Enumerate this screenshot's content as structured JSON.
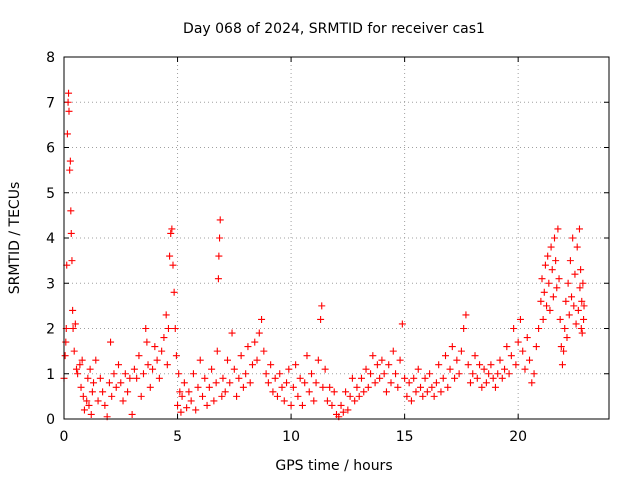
{
  "chart_data": {
    "type": "scatter",
    "title": "Day 068 of 2024, SRMTID for receiver cas1",
    "xlabel": "GPS time / hours",
    "ylabel": "SRMTID / TECUs",
    "xlim": [
      0,
      24
    ],
    "ylim": [
      0,
      8
    ],
    "x_ticks": [
      "0",
      "5",
      "10",
      "15",
      "20"
    ],
    "x_tick_values": [
      0,
      5,
      10,
      15,
      20
    ],
    "y_ticks": [
      "0",
      "1",
      "2",
      "3",
      "4",
      "5",
      "6",
      "7",
      "8"
    ],
    "y_tick_values": [
      0,
      1,
      2,
      3,
      4,
      5,
      6,
      7,
      8
    ],
    "grid": true,
    "marker": "+",
    "color": "#ff0000",
    "series": [
      {
        "name": "SRMTID",
        "points": [
          [
            0.0,
            0.9
          ],
          [
            0.05,
            1.4
          ],
          [
            0.08,
            1.7
          ],
          [
            0.1,
            2.0
          ],
          [
            0.12,
            3.4
          ],
          [
            0.15,
            6.3
          ],
          [
            0.18,
            7.0
          ],
          [
            0.2,
            7.2
          ],
          [
            0.22,
            6.8
          ],
          [
            0.25,
            5.5
          ],
          [
            0.28,
            5.7
          ],
          [
            0.3,
            4.6
          ],
          [
            0.32,
            4.1
          ],
          [
            0.35,
            3.5
          ],
          [
            0.38,
            2.4
          ],
          [
            0.4,
            2.0
          ],
          [
            0.45,
            1.5
          ],
          [
            0.5,
            2.1
          ],
          [
            0.55,
            1.1
          ],
          [
            0.6,
            1.0
          ],
          [
            0.7,
            1.2
          ],
          [
            0.75,
            0.7
          ],
          [
            0.8,
            1.3
          ],
          [
            0.85,
            0.5
          ],
          [
            0.9,
            0.2
          ],
          [
            1.0,
            0.4
          ],
          [
            1.05,
            0.9
          ],
          [
            1.1,
            0.3
          ],
          [
            1.15,
            1.1
          ],
          [
            1.2,
            0.1
          ],
          [
            1.25,
            0.6
          ],
          [
            1.3,
            0.8
          ],
          [
            1.4,
            1.3
          ],
          [
            1.5,
            0.4
          ],
          [
            1.6,
            0.9
          ],
          [
            1.7,
            0.6
          ],
          [
            1.8,
            0.3
          ],
          [
            1.9,
            0.05
          ],
          [
            2.0,
            0.8
          ],
          [
            2.05,
            1.7
          ],
          [
            2.1,
            0.5
          ],
          [
            2.2,
            1.0
          ],
          [
            2.3,
            0.7
          ],
          [
            2.4,
            1.2
          ],
          [
            2.5,
            0.8
          ],
          [
            2.6,
            0.4
          ],
          [
            2.7,
            1.0
          ],
          [
            2.8,
            0.6
          ],
          [
            2.9,
            0.9
          ],
          [
            3.0,
            0.1
          ],
          [
            3.1,
            1.1
          ],
          [
            3.2,
            0.9
          ],
          [
            3.3,
            1.4
          ],
          [
            3.4,
            0.5
          ],
          [
            3.5,
            1.0
          ],
          [
            3.6,
            2.0
          ],
          [
            3.65,
            1.7
          ],
          [
            3.7,
            1.2
          ],
          [
            3.8,
            0.7
          ],
          [
            3.9,
            1.1
          ],
          [
            4.0,
            1.6
          ],
          [
            4.1,
            1.3
          ],
          [
            4.2,
            0.9
          ],
          [
            4.3,
            1.5
          ],
          [
            4.4,
            1.8
          ],
          [
            4.5,
            2.3
          ],
          [
            4.55,
            1.2
          ],
          [
            4.6,
            2.0
          ],
          [
            4.65,
            3.6
          ],
          [
            4.7,
            4.1
          ],
          [
            4.75,
            4.2
          ],
          [
            4.8,
            3.4
          ],
          [
            4.85,
            2.8
          ],
          [
            4.9,
            2.0
          ],
          [
            4.95,
            1.4
          ],
          [
            5.0,
            0.3
          ],
          [
            5.05,
            1.0
          ],
          [
            5.1,
            0.6
          ],
          [
            5.15,
            0.15
          ],
          [
            5.2,
            0.5
          ],
          [
            5.3,
            0.8
          ],
          [
            5.4,
            0.25
          ],
          [
            5.5,
            0.6
          ],
          [
            5.6,
            0.4
          ],
          [
            5.7,
            1.0
          ],
          [
            5.8,
            0.2
          ],
          [
            5.9,
            0.7
          ],
          [
            6.0,
            1.3
          ],
          [
            6.1,
            0.5
          ],
          [
            6.2,
            0.9
          ],
          [
            6.3,
            0.3
          ],
          [
            6.4,
            0.7
          ],
          [
            6.5,
            1.1
          ],
          [
            6.6,
            0.4
          ],
          [
            6.7,
            0.8
          ],
          [
            6.75,
            1.5
          ],
          [
            6.8,
            3.1
          ],
          [
            6.82,
            3.6
          ],
          [
            6.85,
            4.0
          ],
          [
            6.88,
            4.4
          ],
          [
            6.95,
            0.5
          ],
          [
            7.0,
            0.9
          ],
          [
            7.1,
            0.6
          ],
          [
            7.2,
            1.3
          ],
          [
            7.3,
            0.8
          ],
          [
            7.4,
            1.9
          ],
          [
            7.5,
            1.1
          ],
          [
            7.6,
            0.5
          ],
          [
            7.7,
            0.9
          ],
          [
            7.8,
            1.4
          ],
          [
            7.9,
            0.7
          ],
          [
            8.0,
            1.0
          ],
          [
            8.1,
            1.6
          ],
          [
            8.2,
            0.8
          ],
          [
            8.3,
            1.2
          ],
          [
            8.4,
            1.7
          ],
          [
            8.5,
            1.3
          ],
          [
            8.6,
            1.9
          ],
          [
            8.7,
            2.2
          ],
          [
            8.8,
            1.5
          ],
          [
            8.9,
            1.0
          ],
          [
            9.0,
            0.8
          ],
          [
            9.1,
            1.2
          ],
          [
            9.2,
            0.6
          ],
          [
            9.3,
            0.9
          ],
          [
            9.4,
            0.5
          ],
          [
            9.5,
            1.0
          ],
          [
            9.6,
            0.7
          ],
          [
            9.7,
            0.4
          ],
          [
            9.8,
            0.8
          ],
          [
            9.9,
            1.1
          ],
          [
            10.0,
            0.3
          ],
          [
            10.1,
            0.7
          ],
          [
            10.2,
            1.2
          ],
          [
            10.3,
            0.5
          ],
          [
            10.4,
            0.9
          ],
          [
            10.5,
            0.3
          ],
          [
            10.6,
            0.8
          ],
          [
            10.7,
            1.4
          ],
          [
            10.8,
            0.6
          ],
          [
            10.9,
            1.0
          ],
          [
            11.0,
            0.4
          ],
          [
            11.1,
            0.8
          ],
          [
            11.2,
            1.3
          ],
          [
            11.3,
            2.2
          ],
          [
            11.35,
            2.5
          ],
          [
            11.4,
            0.7
          ],
          [
            11.5,
            1.1
          ],
          [
            11.6,
            0.4
          ],
          [
            11.7,
            0.7
          ],
          [
            11.8,
            0.3
          ],
          [
            11.9,
            0.6
          ],
          [
            12.0,
            0.1
          ],
          [
            12.1,
            0.05
          ],
          [
            12.2,
            0.3
          ],
          [
            12.3,
            0.15
          ],
          [
            12.4,
            0.6
          ],
          [
            12.5,
            0.2
          ],
          [
            12.6,
            0.5
          ],
          [
            12.7,
            0.9
          ],
          [
            12.8,
            0.4
          ],
          [
            12.9,
            0.7
          ],
          [
            13.0,
            0.5
          ],
          [
            13.1,
            0.9
          ],
          [
            13.2,
            0.6
          ],
          [
            13.3,
            1.1
          ],
          [
            13.4,
            0.7
          ],
          [
            13.5,
            1.0
          ],
          [
            13.6,
            1.4
          ],
          [
            13.7,
            0.8
          ],
          [
            13.8,
            1.2
          ],
          [
            13.9,
            0.9
          ],
          [
            14.0,
            1.3
          ],
          [
            14.1,
            1.0
          ],
          [
            14.2,
            0.6
          ],
          [
            14.3,
            1.2
          ],
          [
            14.4,
            0.8
          ],
          [
            14.5,
            1.5
          ],
          [
            14.6,
            1.0
          ],
          [
            14.7,
            0.7
          ],
          [
            14.8,
            1.3
          ],
          [
            14.9,
            2.1
          ],
          [
            15.0,
            0.9
          ],
          [
            15.1,
            0.5
          ],
          [
            15.2,
            0.8
          ],
          [
            15.3,
            0.4
          ],
          [
            15.4,
            0.9
          ],
          [
            15.5,
            0.6
          ],
          [
            15.6,
            1.1
          ],
          [
            15.7,
            0.7
          ],
          [
            15.8,
            0.5
          ],
          [
            15.9,
            0.9
          ],
          [
            16.0,
            0.6
          ],
          [
            16.1,
            1.0
          ],
          [
            16.2,
            0.7
          ],
          [
            16.3,
            0.5
          ],
          [
            16.4,
            0.8
          ],
          [
            16.5,
            1.2
          ],
          [
            16.6,
            0.6
          ],
          [
            16.7,
            0.9
          ],
          [
            16.8,
            1.4
          ],
          [
            16.9,
            0.7
          ],
          [
            17.0,
            1.1
          ],
          [
            17.1,
            1.6
          ],
          [
            17.2,
            0.9
          ],
          [
            17.3,
            1.3
          ],
          [
            17.4,
            1.0
          ],
          [
            17.5,
            1.5
          ],
          [
            17.6,
            2.0
          ],
          [
            17.7,
            2.3
          ],
          [
            17.8,
            1.2
          ],
          [
            17.9,
            0.8
          ],
          [
            18.0,
            1.0
          ],
          [
            18.1,
            1.4
          ],
          [
            18.2,
            0.9
          ],
          [
            18.3,
            1.2
          ],
          [
            18.4,
            0.7
          ],
          [
            18.5,
            1.1
          ],
          [
            18.6,
            0.8
          ],
          [
            18.7,
            1.0
          ],
          [
            18.8,
            1.2
          ],
          [
            18.9,
            0.9
          ],
          [
            19.0,
            0.7
          ],
          [
            19.1,
            1.0
          ],
          [
            19.2,
            1.3
          ],
          [
            19.3,
            0.9
          ],
          [
            19.4,
            1.1
          ],
          [
            19.5,
            1.6
          ],
          [
            19.6,
            1.0
          ],
          [
            19.7,
            1.4
          ],
          [
            19.8,
            2.0
          ],
          [
            19.9,
            1.2
          ],
          [
            20.0,
            1.7
          ],
          [
            20.1,
            2.2
          ],
          [
            20.2,
            1.5
          ],
          [
            20.3,
            1.1
          ],
          [
            20.4,
            1.8
          ],
          [
            20.5,
            1.3
          ],
          [
            20.6,
            0.8
          ],
          [
            20.7,
            1.0
          ],
          [
            20.8,
            1.6
          ],
          [
            20.9,
            2.0
          ],
          [
            21.0,
            2.6
          ],
          [
            21.05,
            3.1
          ],
          [
            21.1,
            2.2
          ],
          [
            21.15,
            2.8
          ],
          [
            21.2,
            3.4
          ],
          [
            21.25,
            2.5
          ],
          [
            21.3,
            3.6
          ],
          [
            21.35,
            3.0
          ],
          [
            21.4,
            2.4
          ],
          [
            21.45,
            3.8
          ],
          [
            21.5,
            3.3
          ],
          [
            21.55,
            2.7
          ],
          [
            21.6,
            4.0
          ],
          [
            21.65,
            3.5
          ],
          [
            21.7,
            2.9
          ],
          [
            21.75,
            4.2
          ],
          [
            21.8,
            3.1
          ],
          [
            21.85,
            2.2
          ],
          [
            21.9,
            1.6
          ],
          [
            21.95,
            1.2
          ],
          [
            22.0,
            1.5
          ],
          [
            22.05,
            2.0
          ],
          [
            22.1,
            2.6
          ],
          [
            22.15,
            1.8
          ],
          [
            22.2,
            3.0
          ],
          [
            22.25,
            2.3
          ],
          [
            22.3,
            3.5
          ],
          [
            22.35,
            2.7
          ],
          [
            22.4,
            4.0
          ],
          [
            22.45,
            2.5
          ],
          [
            22.5,
            3.2
          ],
          [
            22.55,
            2.1
          ],
          [
            22.6,
            3.8
          ],
          [
            22.65,
            2.4
          ],
          [
            22.7,
            4.2
          ],
          [
            22.72,
            2.9
          ],
          [
            22.75,
            3.3
          ],
          [
            22.78,
            2.0
          ],
          [
            22.8,
            2.6
          ],
          [
            22.82,
            1.9
          ],
          [
            22.85,
            3.0
          ],
          [
            22.88,
            2.2
          ],
          [
            22.9,
            2.5
          ]
        ]
      }
    ]
  }
}
